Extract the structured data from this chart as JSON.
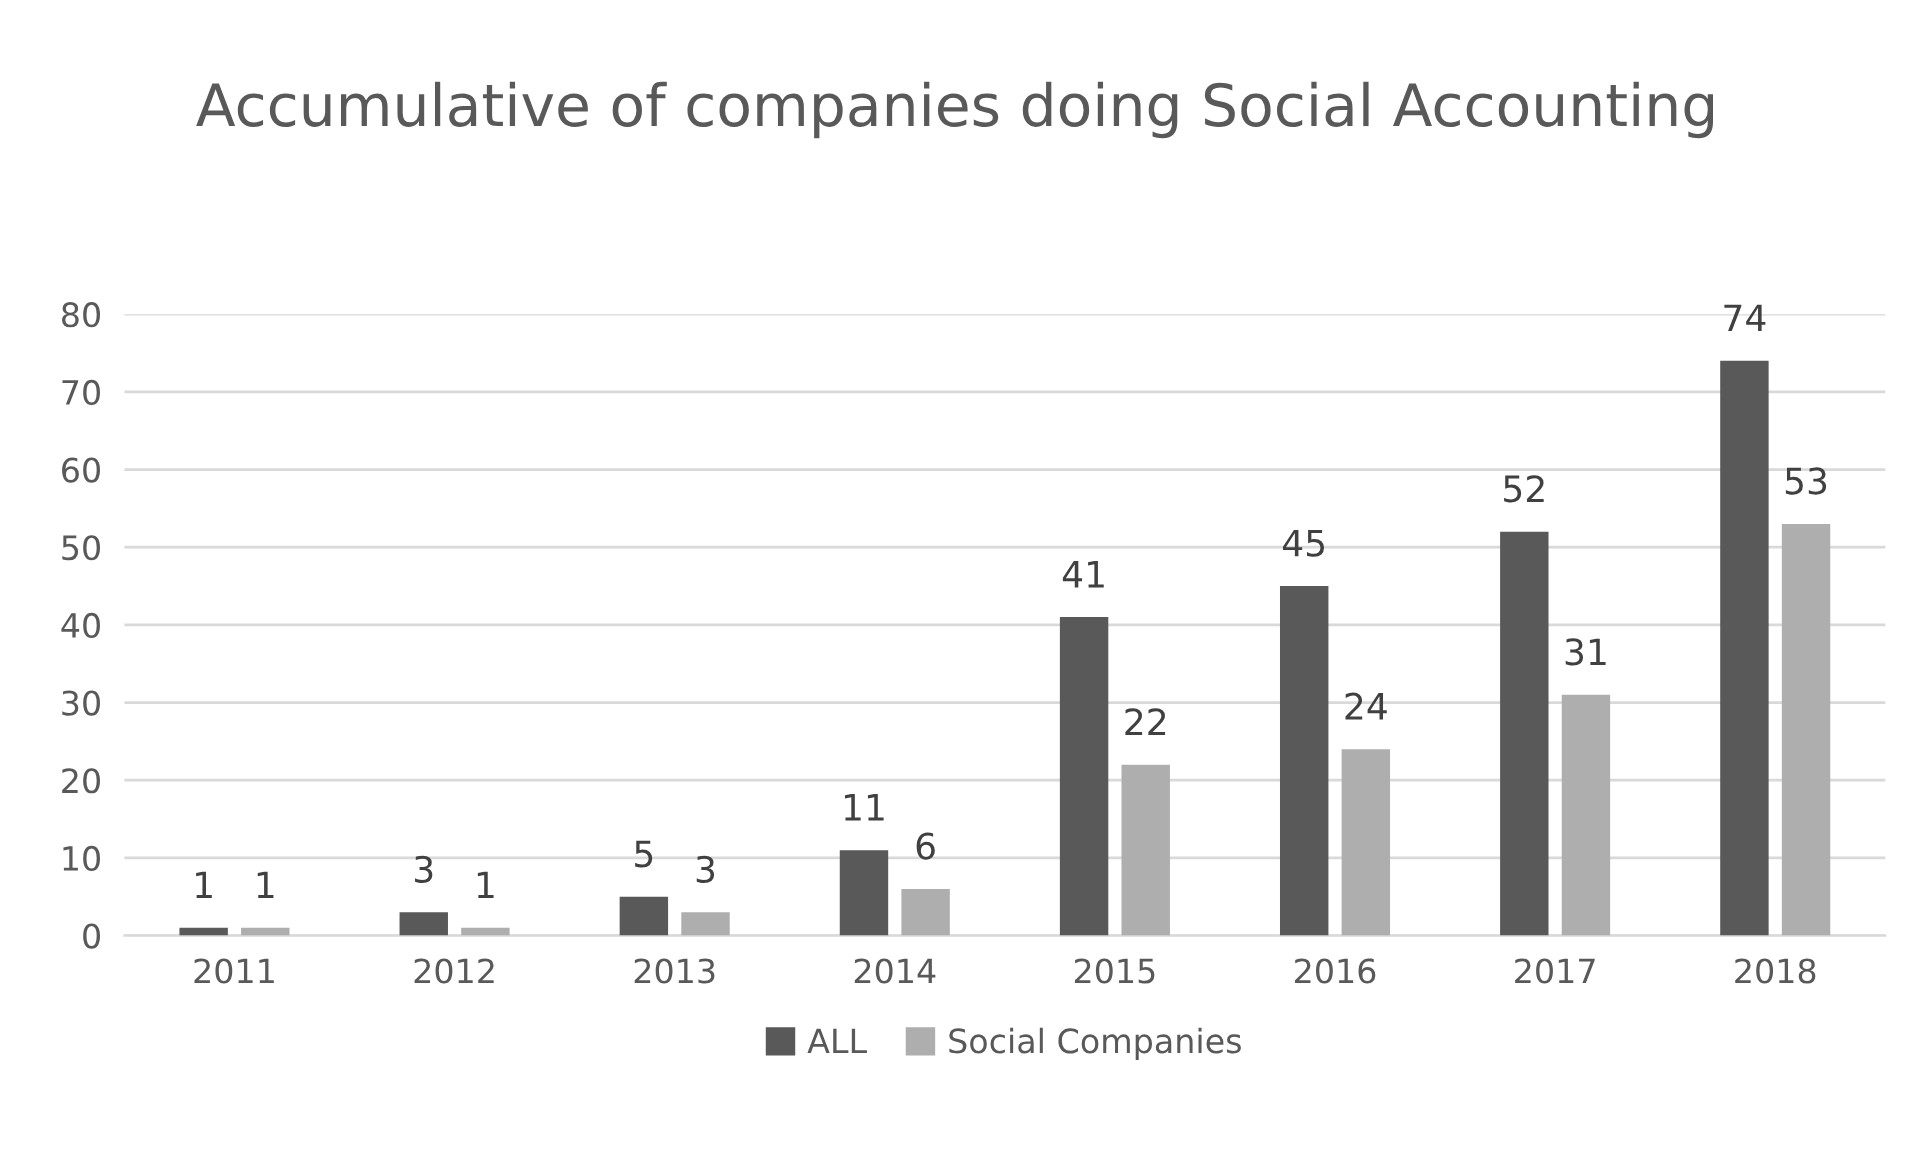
{
  "chart_data": {
    "type": "bar",
    "title": "Accumulative of companies doing Social Accounting",
    "categories": [
      "2011",
      "2012",
      "2013",
      "2014",
      "2015",
      "2016",
      "2017",
      "2018"
    ],
    "series": [
      {
        "name": "ALL",
        "color": "#595959",
        "values": [
          1,
          3,
          5,
          11,
          41,
          45,
          52,
          74
        ]
      },
      {
        "name": "Social Companies",
        "color": "#aeaeae",
        "values": [
          1,
          1,
          3,
          6,
          22,
          24,
          31,
          53
        ]
      }
    ],
    "ylim": [
      0,
      80
    ],
    "yticks": [
      0,
      10,
      20,
      30,
      40,
      50,
      60,
      70,
      80
    ],
    "grid": "y",
    "legend": "bottom",
    "data_labels": true
  }
}
